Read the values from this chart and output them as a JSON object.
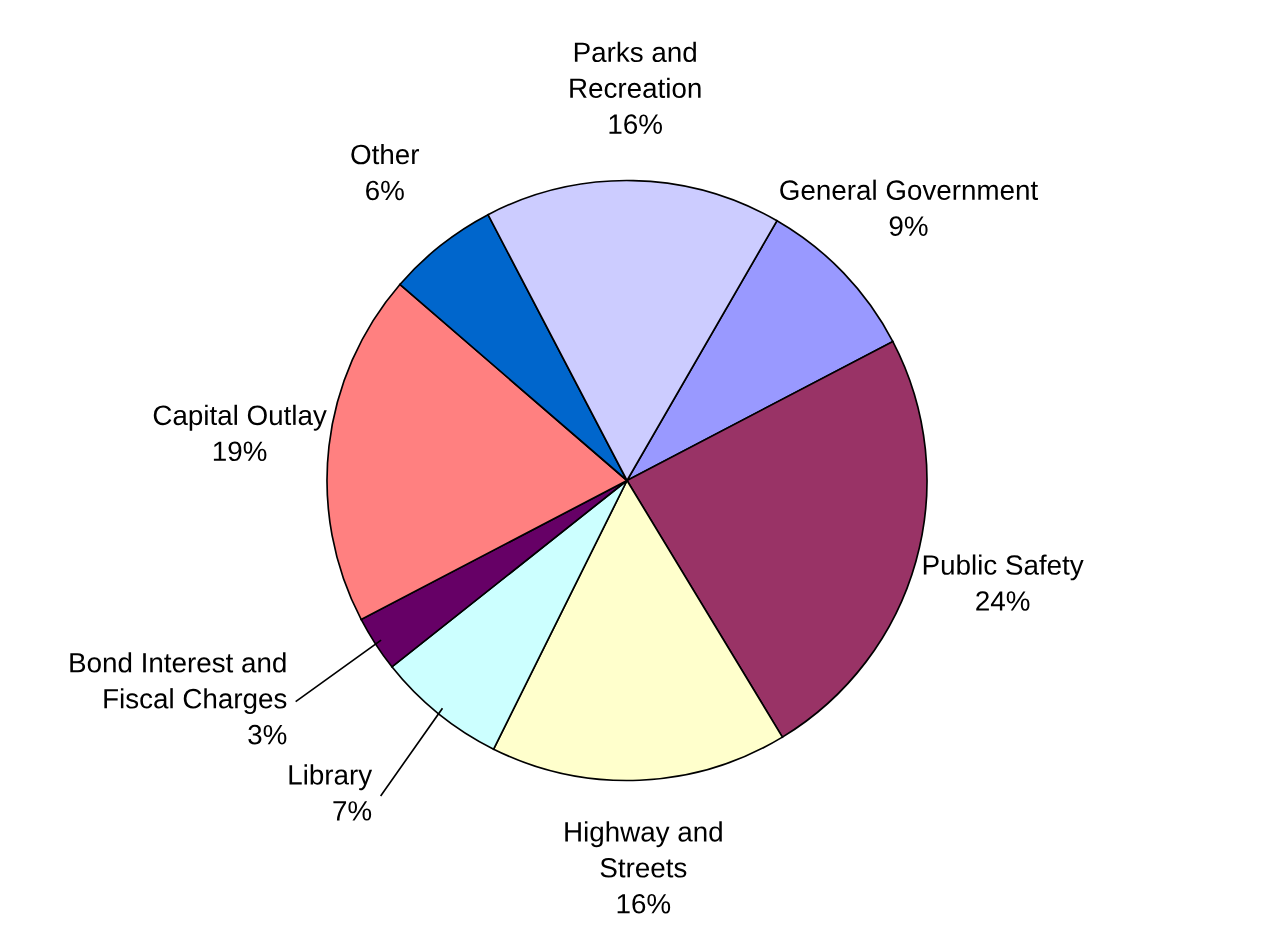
{
  "chart_data": {
    "type": "pie",
    "categories": [
      "General Government",
      "Public Safety",
      "Highway and\nStreets",
      "Library",
      "Bond Interest and\nFiscal Charges",
      "Capital Outlay",
      "Other",
      "Parks and\nRecreation"
    ],
    "values": [
      9,
      24,
      16,
      7,
      3,
      19,
      6,
      16
    ],
    "value_labels": [
      "9%",
      "24%",
      "16%",
      "7%",
      "3%",
      "19%",
      "6%",
      "16%"
    ],
    "colors": [
      "#9999ff",
      "#993366",
      "#ffffcc",
      "#ccffff",
      "#660066",
      "#ff8080",
      "#0066cc",
      "#ccccff"
    ],
    "legend": false
  }
}
